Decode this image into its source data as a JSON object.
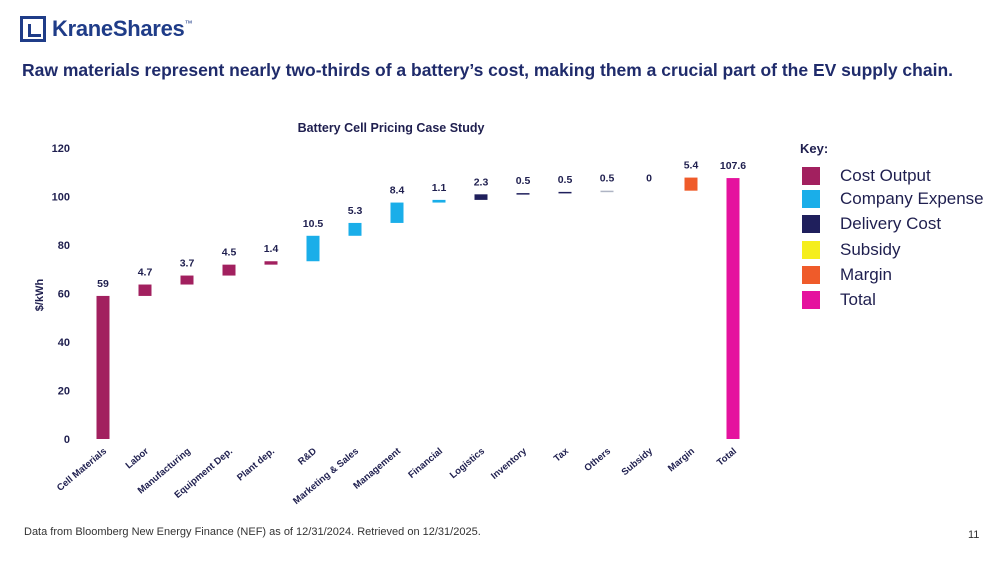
{
  "brand": {
    "logo_text": "KraneShares",
    "logo_tm": "™"
  },
  "headline": "Raw materials represent nearly two-thirds of a battery’s cost, making them a crucial part of the EV supply chain.",
  "footnote": "Data from Bloomberg New Energy Finance (NEF) as of 12/31/2024. Retrieved on 12/31/2025.",
  "page_number": "11",
  "legend": {
    "title": "Key:",
    "items": [
      {
        "label": "Cost Output",
        "color": "#a2205f"
      },
      {
        "label": "Company Expense",
        "color": "#1aaee9"
      },
      {
        "label": "Delivery Cost",
        "color": "#1f1f5c"
      },
      {
        "label": "Subsidy",
        "color": "#f5ee1c"
      },
      {
        "label": "Margin",
        "color": "#ef5b2a"
      },
      {
        "label": "Total",
        "color": "#e5129e"
      }
    ]
  },
  "chart_data": {
    "type": "bar",
    "subtype": "waterfall",
    "title": "Battery Cell Pricing Case Study",
    "xlabel": "",
    "ylabel": "$/kWh",
    "ylim": [
      0,
      120
    ],
    "yticks": [
      0,
      20,
      40,
      60,
      80,
      100,
      120
    ],
    "categories": [
      "Cell Materials",
      "Labor",
      "Manufacturing",
      "Equipment Dep.",
      "Plant dep.",
      "R&D",
      "Marketing & Sales",
      "Management",
      "Financial",
      "Logistics",
      "Inventory",
      "Tax",
      "Others",
      "Subsidy",
      "Margin",
      "Total"
    ],
    "values": [
      59,
      4.7,
      3.7,
      4.5,
      1.4,
      10.5,
      5.3,
      8.4,
      1.1,
      2.3,
      0.5,
      0.5,
      0.5,
      0,
      5.4,
      107.6
    ],
    "labels": [
      "59",
      "4.7",
      "3.7",
      "4.5",
      "1.4",
      "10.5",
      "5.3",
      "8.4",
      "1.1",
      "2.3",
      "0.5",
      "0.5",
      "0.5",
      "0",
      "5.4",
      "107.6"
    ],
    "groups": [
      "Cost Output",
      "Cost Output",
      "Cost Output",
      "Cost Output",
      "Cost Output",
      "Company Expense",
      "Company Expense",
      "Company Expense",
      "Company Expense",
      "Delivery Cost",
      "Delivery Cost",
      "Delivery Cost",
      "Delivery Cost",
      "Subsidy",
      "Margin",
      "Total"
    ],
    "colors": [
      "#a2205f",
      "#a2205f",
      "#a2205f",
      "#a2205f",
      "#a2205f",
      "#1aaee9",
      "#1aaee9",
      "#1aaee9",
      "#1aaee9",
      "#1f1f5c",
      "#1f1f5c",
      "#1f1f5c",
      "#aeb4c4",
      "#f5ee1c",
      "#ef5b2a",
      "#e5129e"
    ],
    "legend": "right",
    "grid": false
  }
}
